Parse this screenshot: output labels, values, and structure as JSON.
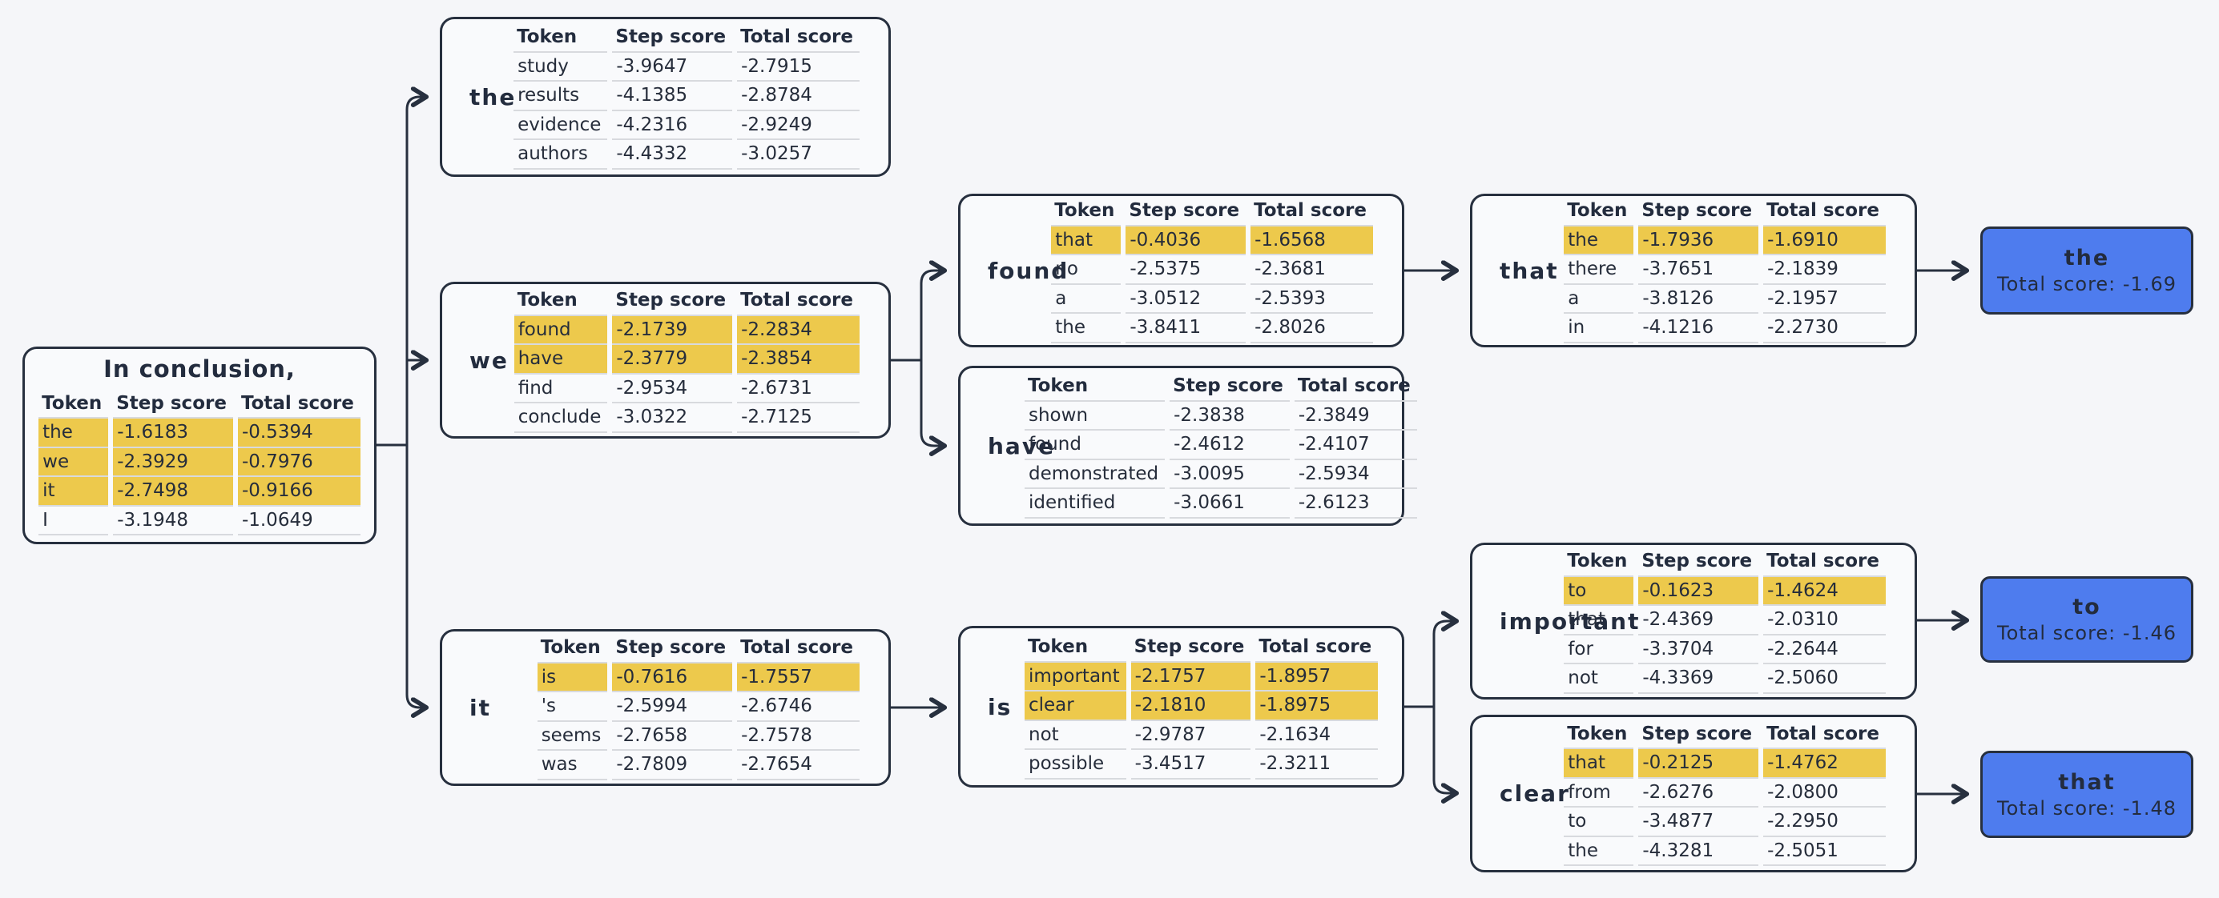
{
  "columns": [
    "Token",
    "Step score",
    "Total score"
  ],
  "colors": {
    "background": "#f5f6f9",
    "node_fill": "#f9fafc",
    "border": "#27303f",
    "highlight": "#edc94c",
    "terminal_fill": "#4e7cee",
    "row_line": "#d8dade"
  },
  "root": {
    "title": "In conclusion,",
    "rows": [
      {
        "token": "the",
        "step": "-1.6183",
        "total": "-0.5394",
        "selected": true
      },
      {
        "token": "we",
        "step": "-2.3929",
        "total": "-0.7976",
        "selected": true
      },
      {
        "token": "it",
        "step": "-2.7498",
        "total": "-0.9166",
        "selected": true
      },
      {
        "token": "I",
        "step": "-3.1948",
        "total": "-1.0649",
        "selected": false
      }
    ]
  },
  "nodes": {
    "the": {
      "label": "the",
      "rows": [
        {
          "token": "study",
          "step": "-3.9647",
          "total": "-2.7915",
          "selected": false
        },
        {
          "token": "results",
          "step": "-4.1385",
          "total": "-2.8784",
          "selected": false
        },
        {
          "token": "evidence",
          "step": "-4.2316",
          "total": "-2.9249",
          "selected": false
        },
        {
          "token": "authors",
          "step": "-4.4332",
          "total": "-3.0257",
          "selected": false
        }
      ]
    },
    "we": {
      "label": "we",
      "rows": [
        {
          "token": "found",
          "step": "-2.1739",
          "total": "-2.2834",
          "selected": true
        },
        {
          "token": "have",
          "step": "-2.3779",
          "total": "-2.3854",
          "selected": true
        },
        {
          "token": "find",
          "step": "-2.9534",
          "total": "-2.6731",
          "selected": false
        },
        {
          "token": "conclude",
          "step": "-3.0322",
          "total": "-2.7125",
          "selected": false
        }
      ]
    },
    "it": {
      "label": "it",
      "rows": [
        {
          "token": "is",
          "step": "-0.7616",
          "total": "-1.7557",
          "selected": true
        },
        {
          "token": "'s",
          "step": "-2.5994",
          "total": "-2.6746",
          "selected": false
        },
        {
          "token": "seems",
          "step": "-2.7658",
          "total": "-2.7578",
          "selected": false
        },
        {
          "token": "was",
          "step": "-2.7809",
          "total": "-2.7654",
          "selected": false
        }
      ]
    },
    "found": {
      "label": "found",
      "rows": [
        {
          "token": "that",
          "step": "-0.4036",
          "total": "-1.6568",
          "selected": true
        },
        {
          "token": "no",
          "step": "-2.5375",
          "total": "-2.3681",
          "selected": false
        },
        {
          "token": "a",
          "step": "-3.0512",
          "total": "-2.5393",
          "selected": false
        },
        {
          "token": "the",
          "step": "-3.8411",
          "total": "-2.8026",
          "selected": false
        }
      ]
    },
    "have": {
      "label": "have",
      "rows": [
        {
          "token": "shown",
          "step": "-2.3838",
          "total": "-2.3849",
          "selected": false
        },
        {
          "token": "found",
          "step": "-2.4612",
          "total": "-2.4107",
          "selected": false
        },
        {
          "token": "demonstrated",
          "step": "-3.0095",
          "total": "-2.5934",
          "selected": false
        },
        {
          "token": "identified",
          "step": "-3.0661",
          "total": "-2.6123",
          "selected": false
        }
      ]
    },
    "is": {
      "label": "is",
      "rows": [
        {
          "token": "important",
          "step": "-2.1757",
          "total": "-1.8957",
          "selected": true
        },
        {
          "token": "clear",
          "step": "-2.1810",
          "total": "-1.8975",
          "selected": true
        },
        {
          "token": "not",
          "step": "-2.9787",
          "total": "-2.1634",
          "selected": false
        },
        {
          "token": "possible",
          "step": "-3.4517",
          "total": "-2.3211",
          "selected": false
        }
      ]
    },
    "that": {
      "label": "that",
      "rows": [
        {
          "token": "the",
          "step": "-1.7936",
          "total": "-1.6910",
          "selected": true
        },
        {
          "token": "there",
          "step": "-3.7651",
          "total": "-2.1839",
          "selected": false
        },
        {
          "token": "a",
          "step": "-3.8126",
          "total": "-2.1957",
          "selected": false
        },
        {
          "token": "in",
          "step": "-4.1216",
          "total": "-2.2730",
          "selected": false
        }
      ]
    },
    "important": {
      "label": "important",
      "rows": [
        {
          "token": "to",
          "step": "-0.1623",
          "total": "-1.4624",
          "selected": true
        },
        {
          "token": "that",
          "step": "-2.4369",
          "total": "-2.0310",
          "selected": false
        },
        {
          "token": "for",
          "step": "-3.3704",
          "total": "-2.2644",
          "selected": false
        },
        {
          "token": "not",
          "step": "-4.3369",
          "total": "-2.5060",
          "selected": false
        }
      ]
    },
    "clear": {
      "label": "clear",
      "rows": [
        {
          "token": "that",
          "step": "-0.2125",
          "total": "-1.4762",
          "selected": true
        },
        {
          "token": "from",
          "step": "-2.6276",
          "total": "-2.0800",
          "selected": false
        },
        {
          "token": "to",
          "step": "-3.4877",
          "total": "-2.2950",
          "selected": false
        },
        {
          "token": "the",
          "step": "-4.3281",
          "total": "-2.5051",
          "selected": false
        }
      ]
    }
  },
  "terminals": [
    {
      "token": "the",
      "total_label": "Total score: -1.69"
    },
    {
      "token": "to",
      "total_label": "Total score: -1.46"
    },
    {
      "token": "that",
      "total_label": "Total score: -1.48"
    }
  ]
}
